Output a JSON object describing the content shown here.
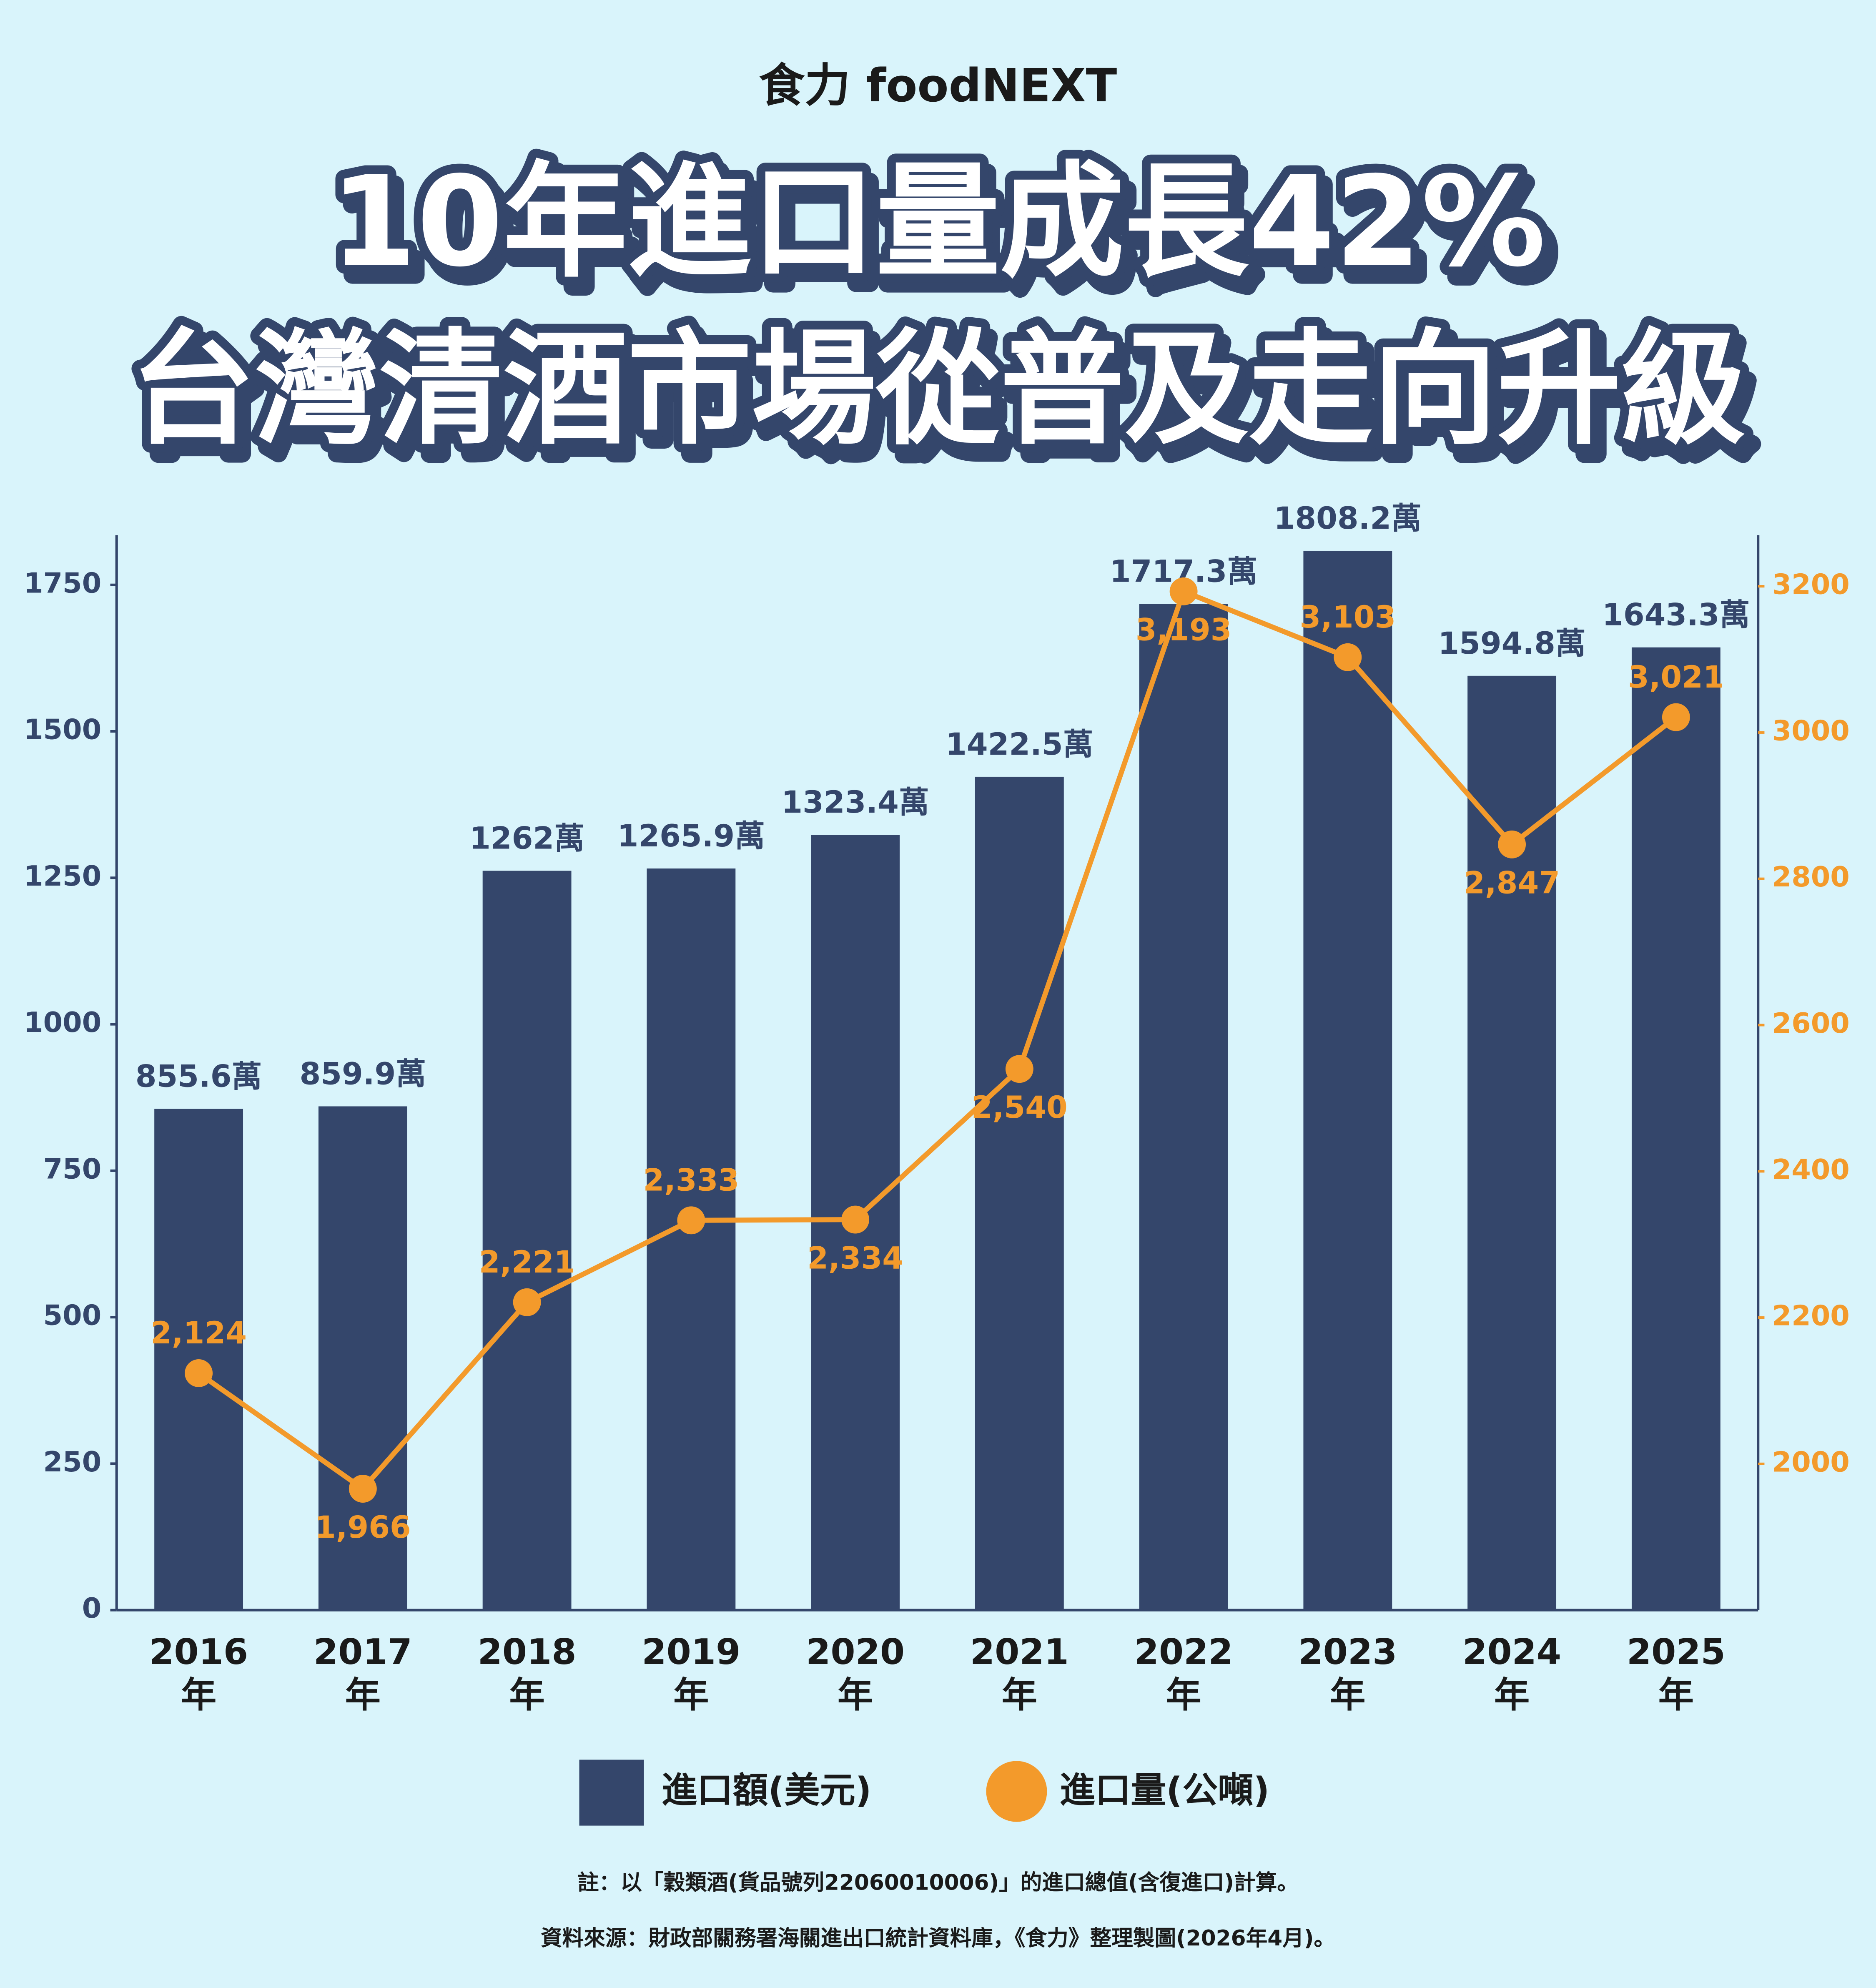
{
  "logo": "食力 foodNEXT",
  "chart_data": {
    "type": "bar-line",
    "title": [
      "10年進口量成長42%",
      "台灣清酒市場從普及走向升級"
    ],
    "categories": [
      "2016年",
      "2017年",
      "2018年",
      "2019年",
      "2020年",
      "2021年",
      "2022年",
      "2023年",
      "2024年",
      "2025年"
    ],
    "series": [
      {
        "name": "進口額(美元)",
        "type": "bar",
        "color": "#34466b",
        "values": [
          855.6,
          859.9,
          1262,
          1265.9,
          1323.4,
          1422.5,
          1717.3,
          1808.2,
          1594.8,
          1643.3
        ],
        "value_labels": [
          "855.6萬",
          "859.9萬",
          "1262萬",
          "1265.9萬",
          "1323.4萬",
          "1422.5萬",
          "1717.3萬",
          "1808.2萬",
          "1594.8萬",
          "1643.3萬"
        ]
      },
      {
        "name": "進口量(公噸)",
        "type": "line",
        "axis": "y2",
        "color": "#f39a2b",
        "values": [
          2124,
          1966,
          2221,
          2333,
          2334,
          2540,
          3193,
          3103,
          2847,
          3021
        ],
        "value_labels": [
          "2,124",
          "1,966",
          "2,221",
          "2,333",
          "2,334",
          "2,540",
          "3,193",
          "3,103",
          "2,847",
          "3,021"
        ]
      }
    ],
    "ylim": [
      0,
      1835
    ],
    "yticks": [
      0,
      250,
      500,
      750,
      1000,
      1250,
      1500,
      1750
    ],
    "y2lim": [
      1800,
      3270
    ],
    "y2ticks": [
      2000,
      2200,
      2400,
      2600,
      2800,
      3000,
      3200
    ],
    "notes": [
      "註：以「穀類酒(貨品號列22060010006)」的進口總值(含復進口)計算。",
      "資料來源：財政部關務署海關進出口統計資料庫，《食力》整理製圖(2026年4月)。"
    ]
  }
}
